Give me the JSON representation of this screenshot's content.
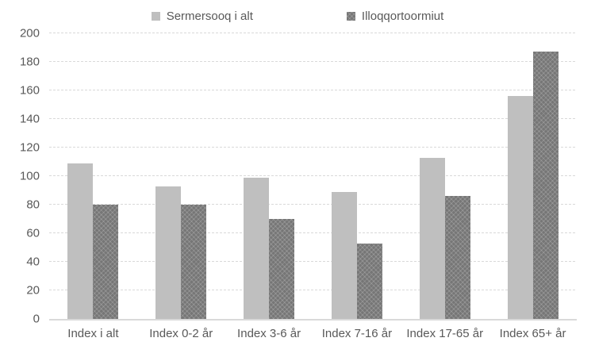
{
  "chart_data": {
    "type": "bar",
    "title": "",
    "xlabel": "",
    "ylabel": "",
    "categories": [
      "Index i alt",
      "Index 0-2 år",
      "Index 3-6 år",
      "Index 7-16 år",
      "Index 17-65 år",
      "Index 65+ år"
    ],
    "series": [
      {
        "name": "Sermersooq i alt",
        "color": "#bfbfbf",
        "pattern": false,
        "values": [
          109,
          93,
          99,
          89,
          113,
          156
        ]
      },
      {
        "name": "Illoqqortoormiut",
        "color": "#7a7a7a",
        "pattern": true,
        "values": [
          80,
          80,
          70,
          53,
          86,
          187
        ]
      }
    ],
    "ylim": [
      0,
      200
    ],
    "ytick_step": 20,
    "yticks": [
      0,
      20,
      40,
      60,
      80,
      100,
      120,
      140,
      160,
      180,
      200
    ],
    "grid": true,
    "gridline_style": "dashed",
    "legend_position": "top"
  },
  "colors": {
    "series_light": "#bfbfbf",
    "series_dark": "#7a7a7a",
    "gridline": "#d9d9d9",
    "axis_line": "#d9d9d9",
    "text": "#595959",
    "background": "#ffffff"
  }
}
